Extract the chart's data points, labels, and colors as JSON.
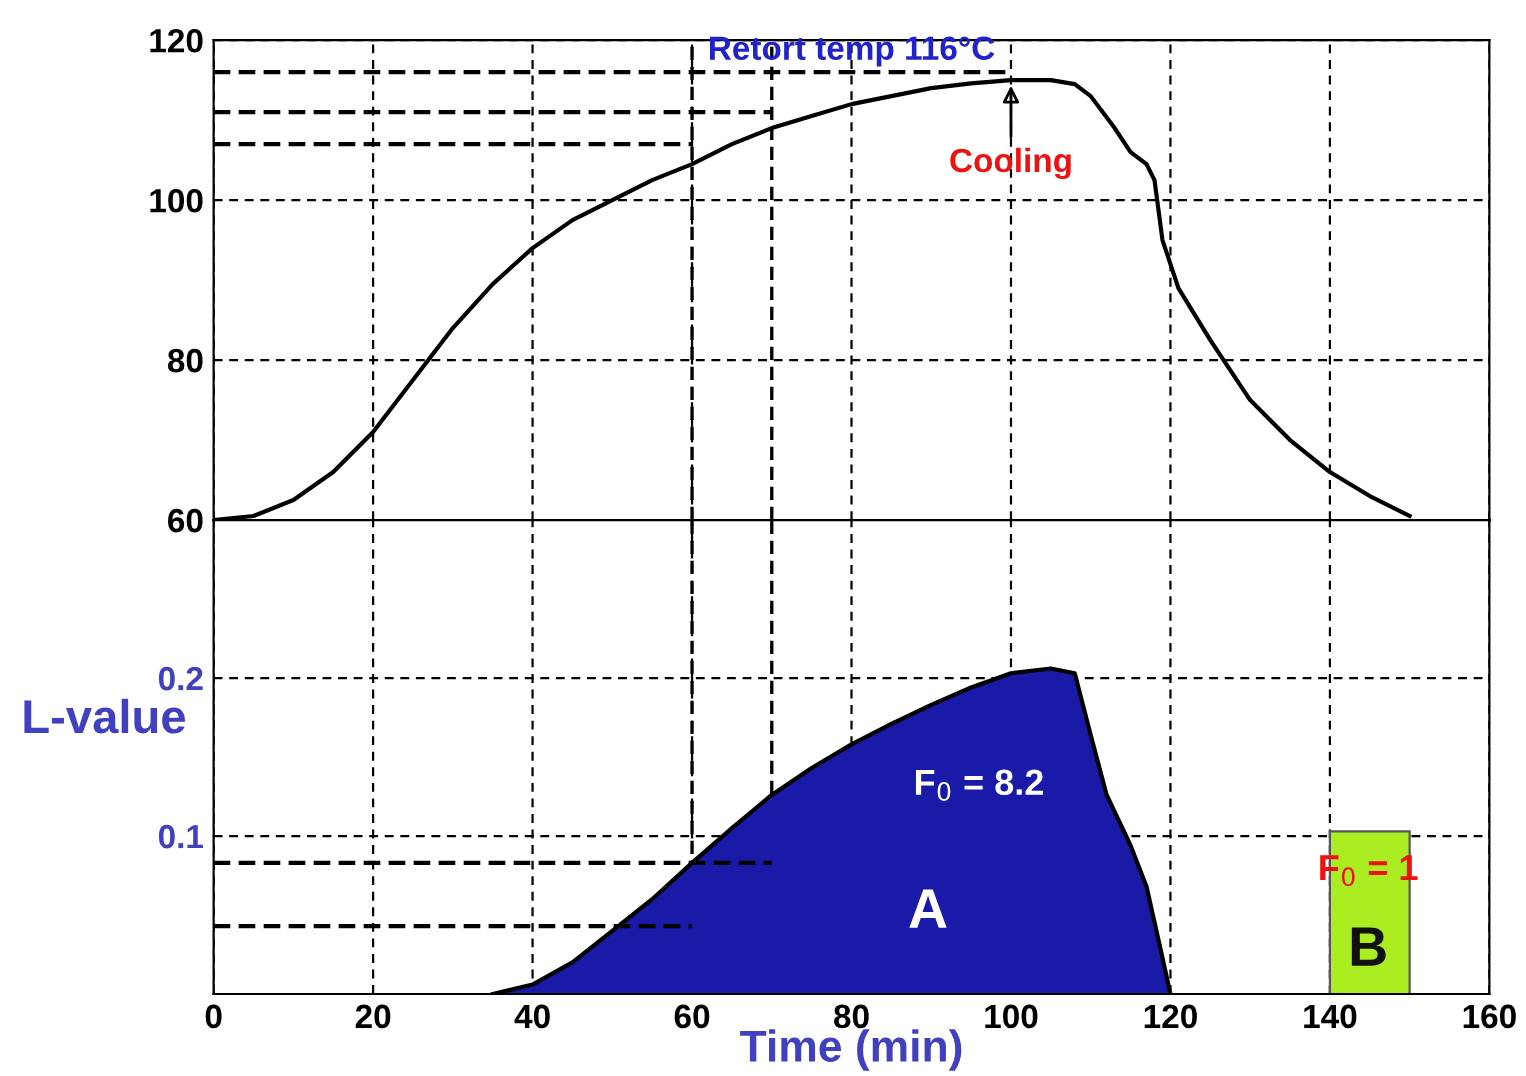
{
  "chart_data": [
    {
      "type": "line",
      "xlim": [
        0,
        160
      ],
      "xticks": [
        0,
        20,
        40,
        60,
        80,
        100,
        120,
        140,
        160
      ],
      "ylim": [
        60,
        120
      ],
      "yticks": [
        60,
        80,
        100,
        120
      ],
      "tick_labels": "y",
      "grid": true,
      "marker": "none",
      "series": [
        {
          "color": "#000000",
          "x": [
            0,
            5,
            10,
            15,
            20,
            25,
            30,
            35,
            40,
            45,
            50,
            55,
            60,
            65,
            70,
            75,
            80,
            85,
            90,
            95,
            100,
            105,
            108,
            110,
            113,
            115,
            117,
            118,
            119,
            121,
            125,
            130,
            135,
            140,
            145,
            150
          ],
          "values": [
            60,
            60.5,
            62.5,
            66,
            71,
            77.5,
            84,
            89.5,
            94,
            97.5,
            100,
            102.5,
            104.5,
            107,
            109,
            110.5,
            112,
            113,
            114,
            114.6,
            115,
            115,
            114.5,
            113,
            109,
            106,
            104.5,
            102.5,
            95,
            89,
            82.5,
            75,
            70,
            66,
            63,
            60.5
          ]
        },
        {
          "type": "line",
          "line_style": "dashed",
          "color": "#000000",
          "x": [
            0,
            100
          ],
          "values": [
            116,
            116
          ]
        },
        {
          "type": "line",
          "line_style": "dashed",
          "color": "#000000",
          "x": [
            0,
            70
          ],
          "values": [
            111,
            111
          ]
        },
        {
          "type": "line",
          "line_style": "dashed",
          "color": "#000000",
          "x": [
            0,
            60
          ],
          "values": [
            107,
            107
          ]
        }
      ],
      "ref_lines": [
        {
          "axis": "x",
          "value": 60,
          "line_style": "dashed",
          "color": "#000000"
        },
        {
          "axis": "x",
          "value": 70,
          "line_style": "dashed",
          "color": "#000000"
        }
      ],
      "annotations": [
        {
          "text": "Retort temp 116°C",
          "x": 80,
          "y": 116
        },
        {
          "text": "Cooling",
          "x": 100,
          "y": 115
        }
      ]
    },
    {
      "type": "area",
      "xlim": [
        0,
        160
      ],
      "xticks": [
        0,
        20,
        40,
        60,
        80,
        100,
        120,
        140,
        160
      ],
      "ylim": [
        0,
        0.3
      ],
      "yticks": [
        0.1,
        0.2
      ],
      "grid": true,
      "marker": "none",
      "xlabel": "Time (min)",
      "ylabel": "L-value",
      "series": [
        {
          "color": "#1a1aa8",
          "x": [
            35,
            40,
            45,
            50,
            55,
            60,
            65,
            70,
            75,
            80,
            85,
            90,
            95,
            100,
            105,
            108,
            110,
            112,
            115,
            117,
            119,
            120
          ],
          "values": [
            0,
            0.006,
            0.02,
            0.04,
            0.06,
            0.083,
            0.105,
            0.126,
            0.143,
            0.158,
            0.171,
            0.183,
            0.194,
            0.203,
            0.206,
            0.203,
            0.164,
            0.126,
            0.094,
            0.068,
            0.023,
            0
          ]
        },
        {
          "type": "bar",
          "color": "#aaee22",
          "x": [
            145
          ],
          "values": [
            0.103
          ]
        },
        {
          "type": "line",
          "line_style": "dashed",
          "color": "#000000",
          "x": [
            0,
            70
          ],
          "values": [
            0.083,
            0.083
          ]
        },
        {
          "type": "line",
          "line_style": "dashed",
          "color": "#000000",
          "x": [
            0,
            60
          ],
          "values": [
            0.043,
            0.043
          ]
        }
      ],
      "ref_lines": [
        {
          "axis": "x",
          "value": 60,
          "line_style": "dashed",
          "color": "#000000"
        },
        {
          "axis": "x",
          "value": 70,
          "line_style": "dashed",
          "color": "#000000"
        }
      ],
      "annotations": [
        "F$_{0}$ = 8.2",
        "A",
        "F$_{0}$ = 1",
        "B"
      ]
    }
  ]
}
